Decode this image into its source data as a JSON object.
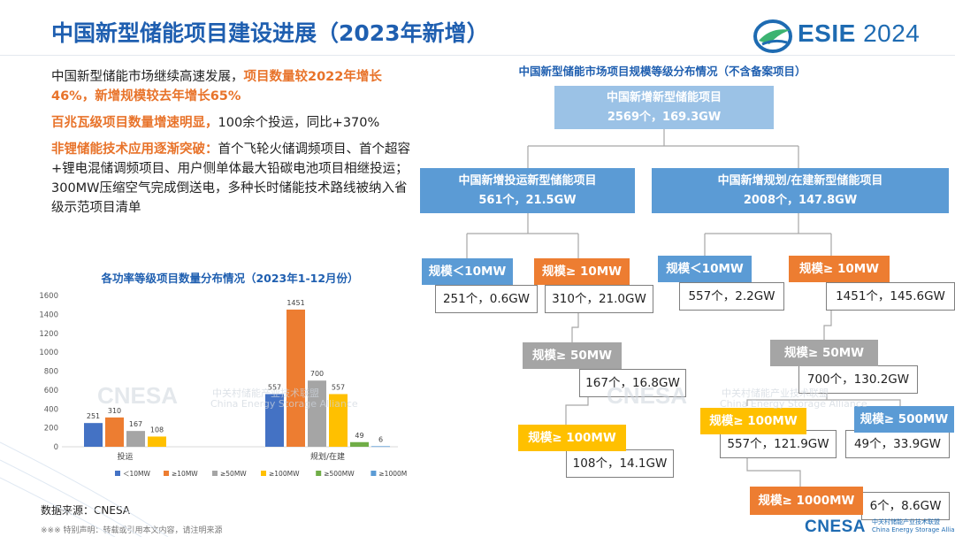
{
  "title": "中国新型储能项目建设进展（2023年新增）",
  "logo": {
    "name": "ESIE",
    "year": "2024"
  },
  "bullets": {
    "b1_plain": "中国新型储能市场继续高速发展，",
    "b1_hl": "项目数量较2022年增长46%，新增规模较去年增长65%",
    "b2_hl": "百兆瓦级项目数量增速明显，",
    "b2_plain": "100余个投运，同比+370%",
    "b3_hl": "非锂储能技术应用逐渐突破：",
    "b3_plain": "首个飞轮火储调频项目、首个超容+锂电混储调频项目、用户侧单体最大铅碳电池项目相继投运；300MW压缩空气完成倒送电，多种长时储能技术路线被纳入省级示范项目清单"
  },
  "tree": {
    "title": "中国新型储能市场项目规模等级分布情况（不含备案项目）",
    "root": {
      "label": "中国新增新型储能项目",
      "value": "2569个，169.3GW"
    },
    "operating": {
      "label": "中国新增投运新型储能项目",
      "value": "561个，21.5GW"
    },
    "planned": {
      "label": "中国新增规划/在建新型储能项目",
      "value": "2008个，147.8GW"
    },
    "op_lt10": {
      "label": "规模＜10MW",
      "value": "251个，0.6GW"
    },
    "op_ge10": {
      "label": "规模≥ 10MW",
      "value": "310个，21.0GW"
    },
    "op_ge50": {
      "label": "规模≥ 50MW",
      "value": "167个，16.8GW"
    },
    "op_ge100": {
      "label": "规模≥ 100MW",
      "value": "108个，14.1GW"
    },
    "pl_lt10": {
      "label": "规模＜10MW",
      "value": "557个，2.2GW"
    },
    "pl_ge10": {
      "label": "规模≥ 10MW",
      "value": "1451个，145.6GW"
    },
    "pl_ge50": {
      "label": "规模≥ 50MW",
      "value": "700个，130.2GW"
    },
    "pl_ge100": {
      "label": "规模≥ 100MW",
      "value": "557个，121.9GW"
    },
    "pl_ge500": {
      "label": "规模≥ 500MW",
      "value": "49个，33.9GW"
    },
    "pl_ge1000": {
      "label": "规模≥ 1000MW",
      "value": "6个，8.6GW"
    }
  },
  "chart_data": {
    "type": "bar",
    "title": "各功率等级项目数量分布情况（2023年1-12月份）",
    "categories": [
      "投运",
      "规划/在建"
    ],
    "series": [
      {
        "name": "＜10MW",
        "color": "#4472c4",
        "values": [
          251,
          557
        ]
      },
      {
        "name": "≥10MW",
        "color": "#ed7d31",
        "values": [
          310,
          1451
        ]
      },
      {
        "name": "≥50MW",
        "color": "#a5a5a5",
        "values": [
          167,
          700
        ]
      },
      {
        "name": "≥100MW",
        "color": "#ffc000",
        "values": [
          108,
          557
        ]
      },
      {
        "name": "≥500MW",
        "color": "#70ad47",
        "values": [
          0,
          49
        ]
      },
      {
        "name": "≥1000MW",
        "color": "#5b9bd5",
        "values": [
          0,
          6
        ]
      }
    ],
    "yticks": [
      "0",
      "200",
      "400",
      "600",
      "800",
      "1000",
      "1200",
      "1400",
      "1600"
    ],
    "ylim": [
      0,
      1600
    ],
    "legend_position": "bottom"
  },
  "watermark": {
    "main": "CNESA",
    "cn": "中关村储能产业技术联盟",
    "en": "China Energy Storage Alliance"
  },
  "source": "数据来源：CNESA",
  "disclaimer": "※※※ 特别声明：转载或引用本文内容，请注明来源",
  "footer": {
    "brand": "CNESA",
    "cn": "中关村储能产业技术联盟",
    "en": "China Energy Storage Alliance"
  }
}
